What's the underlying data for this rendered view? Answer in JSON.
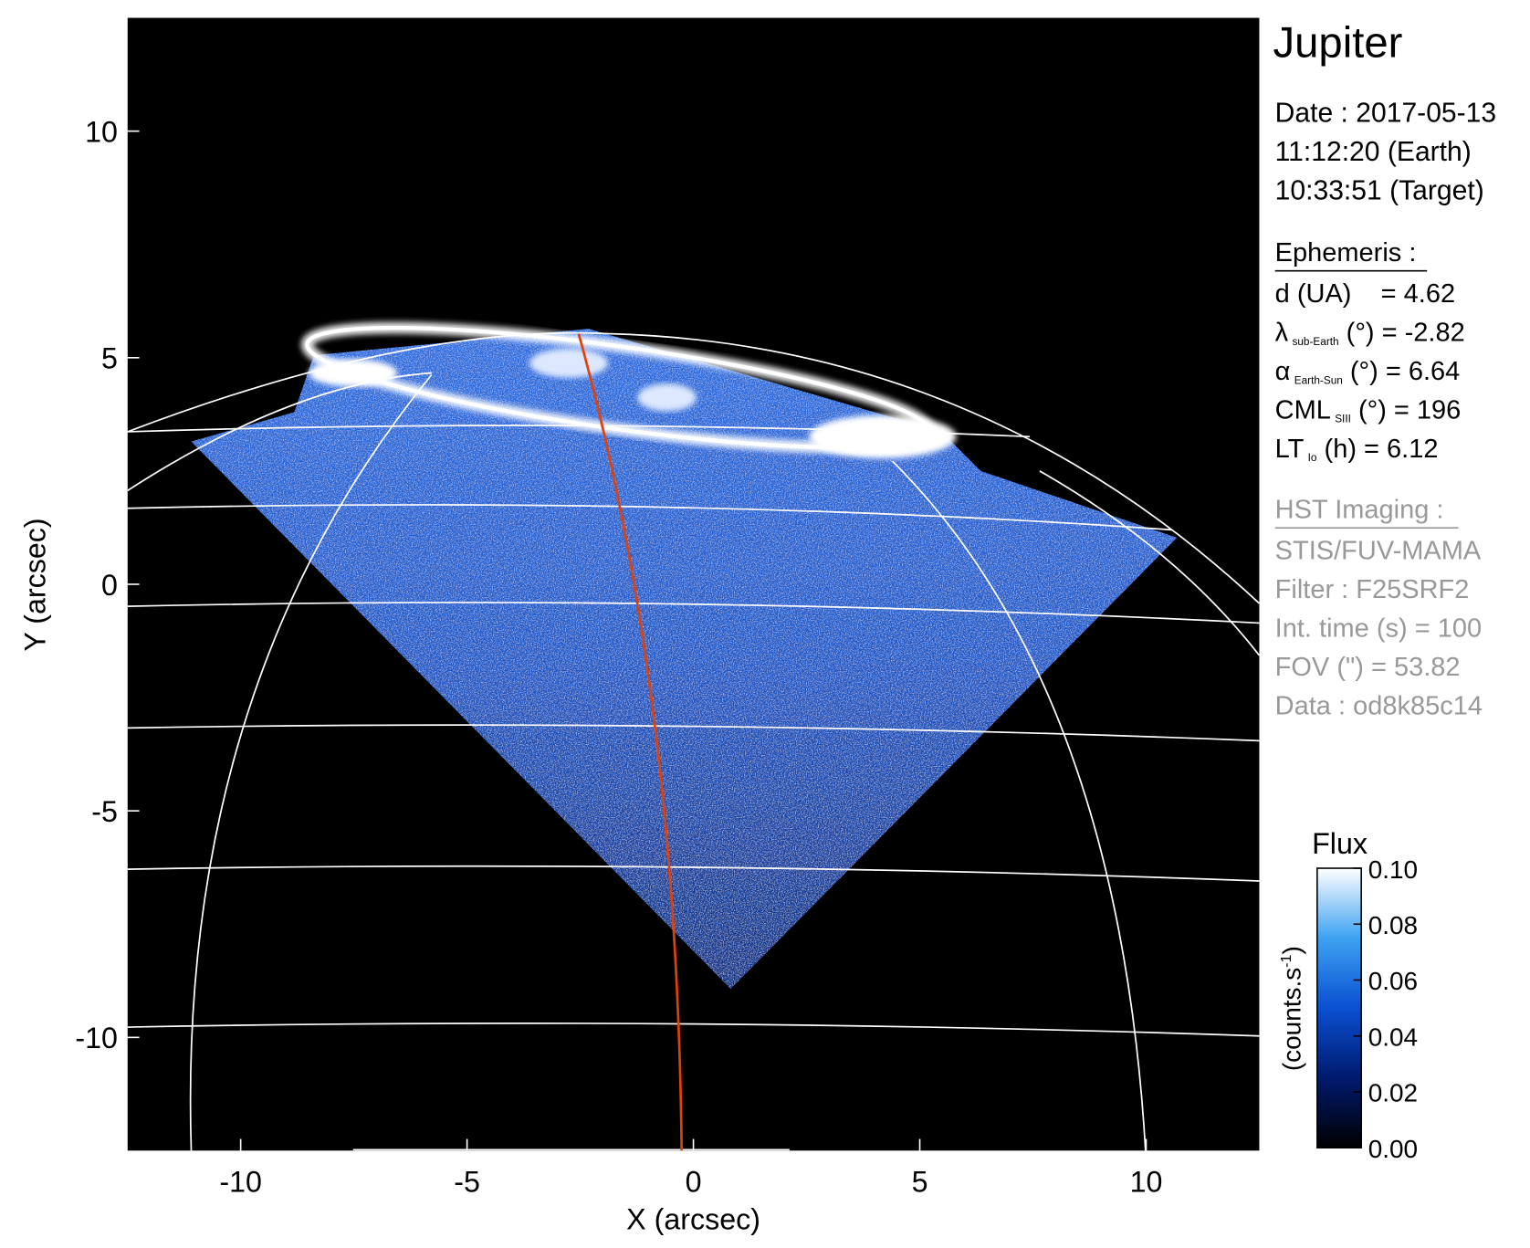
{
  "chart_data": {
    "type": "image",
    "xlabel": "X (arcsec)",
    "ylabel": "Y (arcsec)",
    "xlim": [
      -12.5,
      12.5
    ],
    "ylim": [
      -12.5,
      12.5
    ],
    "xticks": [
      -10,
      -5,
      0,
      5,
      10
    ],
    "yticks": [
      -10,
      -5,
      0,
      5,
      10
    ],
    "colorbar": {
      "title": "Flux",
      "label": {
        "text": "(counts.s",
        "sup": "-1",
        "close": ")"
      },
      "lim": [
        0,
        0.1
      ],
      "ticks": [
        {
          "value": 0,
          "label": "0.00"
        },
        {
          "value": 0.02,
          "label": "0.02"
        },
        {
          "value": 0.04,
          "label": "0.04"
        },
        {
          "value": 0.06,
          "label": "0.06"
        },
        {
          "value": 0.08,
          "label": "0.08"
        },
        {
          "value": 0.1,
          "label": "0.10"
        }
      ],
      "colors": [
        "#000000",
        "#001a6e",
        "#0a50d2",
        "#3ea2f2",
        "#ffffff"
      ]
    }
  },
  "panel": {
    "title": "Jupiter",
    "date": [
      "Date : 2017-05-13",
      "11:12:20 (Earth)",
      "10:33:51 (Target)"
    ],
    "ephemeris": {
      "heading": "Ephemeris :",
      "lines": [
        {
          "text": "d (UA)    = 4.62"
        },
        {
          "text": "λ",
          "sub": "sub-Earth",
          "tail": " (°) = -2.82"
        },
        {
          "text": "α",
          "sub": "Earth-Sun",
          "tail": " (°) = 6.64"
        },
        {
          "text": "CML",
          "sub": "SIII",
          "tail": " (°) = 196"
        },
        {
          "text": "LT",
          "sub": "Io",
          "tail": " (h) = 6.12"
        }
      ]
    },
    "imaging": {
      "heading": "HST Imaging :",
      "lines": [
        "STIS/FUV-MAMA",
        "Filter : F25SRF2",
        "Int. time (s) = 100",
        "FOV (\") = 53.82",
        "Data : od8k85c14"
      ]
    }
  }
}
